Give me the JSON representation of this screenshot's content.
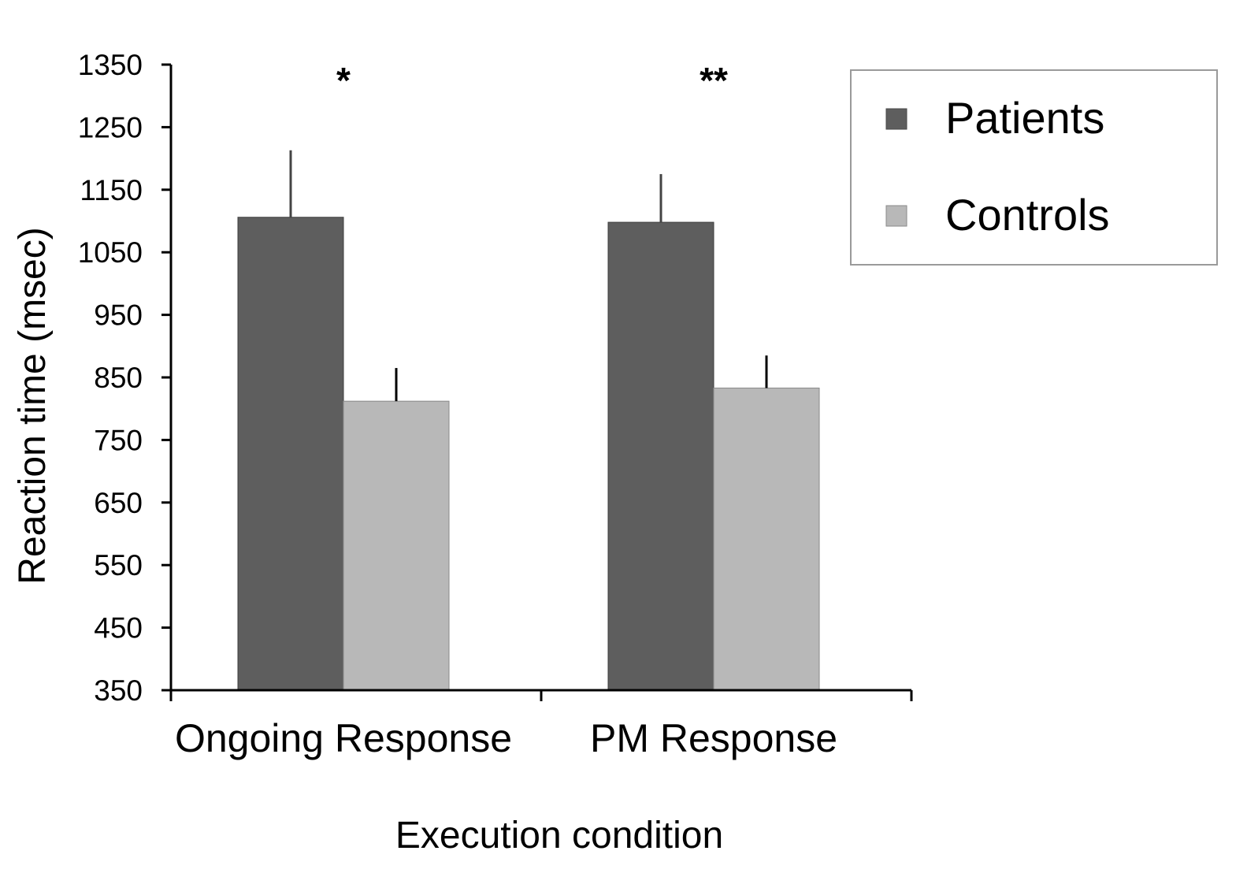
{
  "chart_data": {
    "type": "bar",
    "title": "",
    "xlabel": "Execution condition",
    "ylabel": "Reaction time (msec)",
    "ylim": [
      350,
      1350
    ],
    "yticks": [
      350,
      450,
      550,
      650,
      750,
      850,
      950,
      1050,
      1150,
      1250,
      1350
    ],
    "grid": false,
    "legend_position": "top-right",
    "categories": [
      "Ongoing Response",
      "PM Response"
    ],
    "series": [
      {
        "name": "Patients",
        "color": "#5e5e5e",
        "values": [
          1106,
          1098
        ],
        "error": [
          107,
          77
        ]
      },
      {
        "name": "Controls",
        "color": "#b8b8b8",
        "values": [
          812,
          833
        ],
        "error": [
          53,
          52
        ]
      }
    ],
    "significance": [
      "*",
      "**"
    ]
  }
}
